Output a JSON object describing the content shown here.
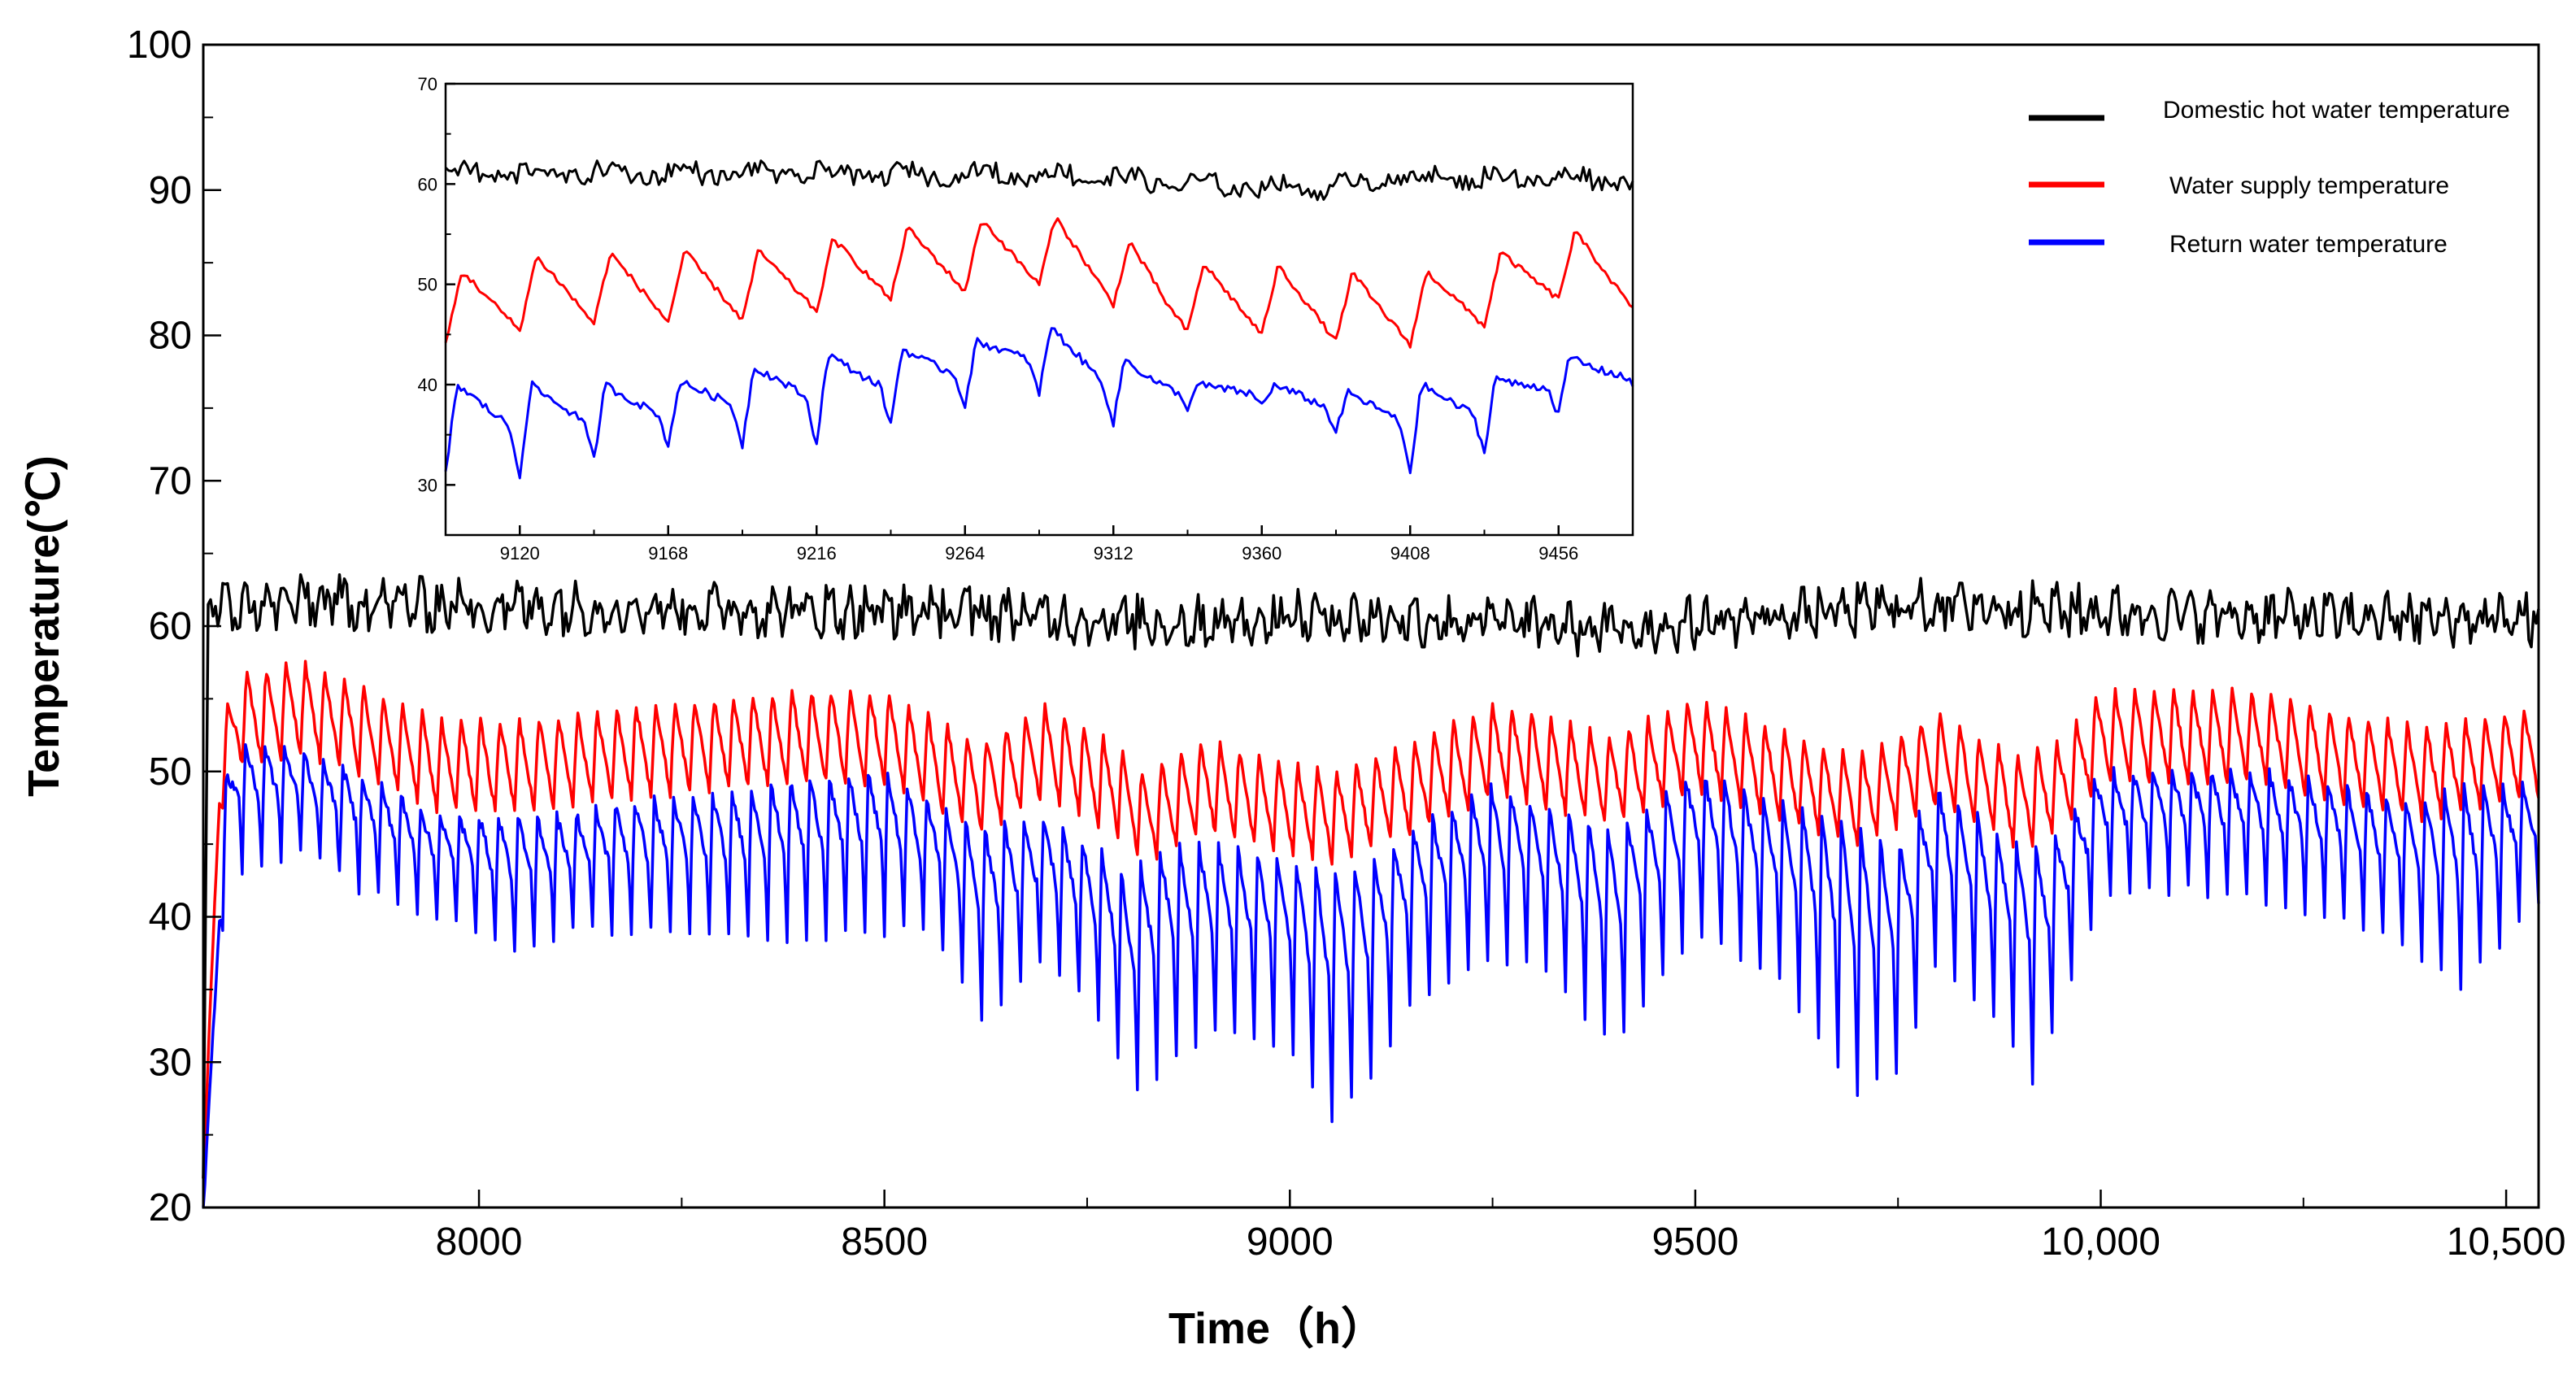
{
  "chart_data": [
    {
      "type": "line",
      "title": "",
      "xlabel": "Time（h）",
      "ylabel": "Temperature(℃)",
      "xlim": [
        7660,
        10540
      ],
      "ylim": [
        20,
        100
      ],
      "x_ticks": [
        8000,
        8500,
        9000,
        9500,
        10000,
        10500
      ],
      "x_tick_labels": [
        "8000",
        "8500",
        "9000",
        "9500",
        "10,000",
        "10,500"
      ],
      "y_ticks": [
        20,
        30,
        40,
        50,
        60,
        70,
        80,
        90,
        100
      ],
      "y_tick_labels": [
        "20",
        "30",
        "40",
        "50",
        "60",
        "70",
        "80",
        "90",
        "100"
      ],
      "grid": false,
      "legend_placement": "top-right",
      "legend": {
        "title": "",
        "entries": [
          "Domestic hot water temperature",
          "Water supply temperature",
          "Return water temperature"
        ]
      },
      "series": [
        {
          "name": "Domestic hot water temperature",
          "color": "#000000",
          "pattern": "noisy",
          "start": 7660,
          "end": 10540,
          "step": 3,
          "base": 60.8,
          "amplitude": 1.4,
          "noise": 1.3,
          "period": 24,
          "startup_from": 22,
          "startup_hours": 6,
          "envelope": [
            [
              7660,
              61.0
            ],
            [
              7800,
              61.5
            ],
            [
              8000,
              61.2
            ],
            [
              8300,
              61.0
            ],
            [
              8600,
              60.8
            ],
            [
              8850,
              60.0
            ],
            [
              9050,
              60.5
            ],
            [
              9300,
              60.0
            ],
            [
              9380,
              59.5
            ],
            [
              9600,
              60.5
            ],
            [
              9800,
              61.3
            ],
            [
              10000,
              60.8
            ],
            [
              10200,
              60.5
            ],
            [
              10400,
              60.3
            ],
            [
              10540,
              60.3
            ]
          ]
        },
        {
          "name": "Water supply temperature",
          "color": "#ff0000",
          "pattern": "sawtooth",
          "start": 7660,
          "end": 10540,
          "step": 2,
          "period": 24,
          "amplitude": 3.2,
          "startup_from": 22,
          "startup_hours": 20,
          "envelope": [
            [
              7660,
              46
            ],
            [
              7700,
              53.5
            ],
            [
              7780,
              54.5
            ],
            [
              7850,
              53
            ],
            [
              7950,
              50.5
            ],
            [
              8050,
              50.5
            ],
            [
              8200,
              51.5
            ],
            [
              8400,
              52.5
            ],
            [
              8500,
              52.5
            ],
            [
              8620,
              49
            ],
            [
              8700,
              51.5
            ],
            [
              8780,
              49
            ],
            [
              8820,
              47
            ],
            [
              8900,
              49
            ],
            [
              9000,
              47.5
            ],
            [
              9060,
              47
            ],
            [
              9150,
              49
            ],
            [
              9250,
              51.5
            ],
            [
              9300,
              51
            ],
            [
              9400,
              49.5
            ],
            [
              9500,
              52
            ],
            [
              9600,
              50
            ],
            [
              9700,
              48
            ],
            [
              9800,
              51
            ],
            [
              9900,
              48
            ],
            [
              9950,
              49
            ],
            [
              10000,
              52.5
            ],
            [
              10100,
              52.5
            ],
            [
              10200,
              52.5
            ],
            [
              10300,
              51
            ],
            [
              10400,
              50
            ],
            [
              10540,
              51.5
            ]
          ]
        },
        {
          "name": "Return water temperature",
          "color": "#0000ff",
          "pattern": "dips",
          "start": 7660,
          "end": 10540,
          "step": 2,
          "period": 24,
          "startup_from": 20,
          "startup_hours": 24,
          "envelope": [
            [
              7660,
              [
                44,
                11
              ]
            ],
            [
              7700,
              [
                52,
                9
              ]
            ],
            [
              7780,
              [
                51.5,
                7
              ]
            ],
            [
              7850,
              [
                50,
                8
              ]
            ],
            [
              7950,
              [
                47,
                7
              ]
            ],
            [
              8000,
              [
                47,
                8
              ]
            ],
            [
              8050,
              [
                47,
                10
              ]
            ],
            [
              8100,
              [
                47,
                8
              ]
            ],
            [
              8200,
              [
                48,
                9
              ]
            ],
            [
              8300,
              [
                48.5,
                10
              ]
            ],
            [
              8400,
              [
                49.5,
                11
              ]
            ],
            [
              8500,
              [
                50,
                11
              ]
            ],
            [
              8560,
              [
                48,
                9
              ]
            ],
            [
              8620,
              [
                46,
                13
              ]
            ],
            [
              8700,
              [
                47,
                10
              ]
            ],
            [
              8780,
              [
                44,
                12
              ]
            ],
            [
              8800,
              [
                43,
                16
              ]
            ],
            [
              8850,
              [
                45,
                15
              ]
            ],
            [
              8900,
              [
                45,
                13
              ]
            ],
            [
              9000,
              [
                44,
                13
              ]
            ],
            [
              9050,
              [
                43,
                17
              ]
            ],
            [
              9100,
              [
                44,
                15
              ]
            ],
            [
              9150,
              [
                46,
                12
              ]
            ],
            [
              9250,
              [
                49,
                12
              ]
            ],
            [
              9300,
              [
                48,
                11
              ]
            ],
            [
              9400,
              [
                46,
                15
              ]
            ],
            [
              9500,
              [
                50,
                11
              ]
            ],
            [
              9600,
              [
                48,
                12
              ]
            ],
            [
              9700,
              [
                46,
                18
              ]
            ],
            [
              9750,
              [
                45,
                16
              ]
            ],
            [
              9800,
              [
                49,
                12
              ]
            ],
            [
              9900,
              [
                45,
                14
              ]
            ],
            [
              9920,
              [
                45,
                17
              ]
            ],
            [
              9950,
              [
                46,
                12
              ]
            ],
            [
              10000,
              [
                50,
                9
              ]
            ],
            [
              10100,
              [
                50,
                8
              ]
            ],
            [
              10200,
              [
                50,
                9
              ]
            ],
            [
              10300,
              [
                49,
                9
              ]
            ],
            [
              10400,
              [
                48,
                11
              ]
            ],
            [
              10440,
              [
                49,
                14
              ]
            ],
            [
              10540,
              [
                49,
                8
              ]
            ]
          ]
        }
      ]
    },
    {
      "type": "line",
      "title": "",
      "xlabel": "",
      "ylabel": "",
      "xlim": [
        9096,
        9480
      ],
      "ylim": [
        25,
        70
      ],
      "x_ticks": [
        9120,
        9168,
        9216,
        9264,
        9312,
        9360,
        9408,
        9456
      ],
      "x_tick_labels": [
        "9120",
        "9168",
        "9216",
        "9264",
        "9312",
        "9360",
        "9408",
        "9456"
      ],
      "y_ticks": [
        30,
        40,
        50,
        60,
        70
      ],
      "y_tick_labels": [
        "30",
        "40",
        "50",
        "60",
        "70"
      ],
      "grid": false,
      "series": [
        {
          "name": "Domestic hot water temperature",
          "color": "#000000",
          "pattern": "noisy",
          "start": 9096,
          "end": 9480,
          "step": 1,
          "base": 60.9,
          "amplitude": 0.9,
          "noise": 0.8,
          "period": 24,
          "envelope": [
            [
              9096,
              61
            ],
            [
              9200,
              61
            ],
            [
              9300,
              60.8
            ],
            [
              9340,
              59.8
            ],
            [
              9380,
              59.5
            ],
            [
              9400,
              60.5
            ],
            [
              9480,
              60.5
            ]
          ]
        },
        {
          "name": "Water supply temperature",
          "color": "#ff0000",
          "pattern": "sawtooth",
          "start": 9096,
          "end": 9480,
          "step": 1,
          "period": 24,
          "amplitude": 3.5,
          "envelope": [
            [
              9096,
              47.5
            ],
            [
              9130,
              49.5
            ],
            [
              9200,
              50
            ],
            [
              9240,
              52
            ],
            [
              9270,
              53
            ],
            [
              9290,
              53.5
            ],
            [
              9312,
              51.5
            ],
            [
              9330,
              49
            ],
            [
              9345,
              48.5
            ],
            [
              9360,
              48.5
            ],
            [
              9395,
              47.5
            ],
            [
              9410,
              47.5
            ],
            [
              9440,
              50
            ],
            [
              9456,
              52
            ],
            [
              9480,
              51
            ]
          ]
        },
        {
          "name": "Return water temperature",
          "color": "#0000ff",
          "pattern": "dips",
          "start": 9096,
          "end": 9480,
          "step": 1,
          "period": 24,
          "envelope": [
            [
              9096,
              [
                40,
                9
              ]
            ],
            [
              9120,
              [
                40,
                9
              ]
            ],
            [
              9168,
              [
                40,
                6
              ]
            ],
            [
              9216,
              [
                43,
                9
              ]
            ],
            [
              9264,
              [
                44,
                6
              ]
            ],
            [
              9290,
              [
                46,
                7
              ]
            ],
            [
              9312,
              [
                43,
                7
              ]
            ],
            [
              9340,
              [
                40,
                2
              ]
            ],
            [
              9360,
              [
                40,
                2
              ]
            ],
            [
              9395,
              [
                39,
                5
              ]
            ],
            [
              9410,
              [
                40,
                9
              ]
            ],
            [
              9440,
              [
                41,
                7
              ]
            ],
            [
              9456,
              [
                43,
                6
              ]
            ],
            [
              9480,
              [
                42,
                2
              ]
            ]
          ]
        }
      ]
    }
  ]
}
